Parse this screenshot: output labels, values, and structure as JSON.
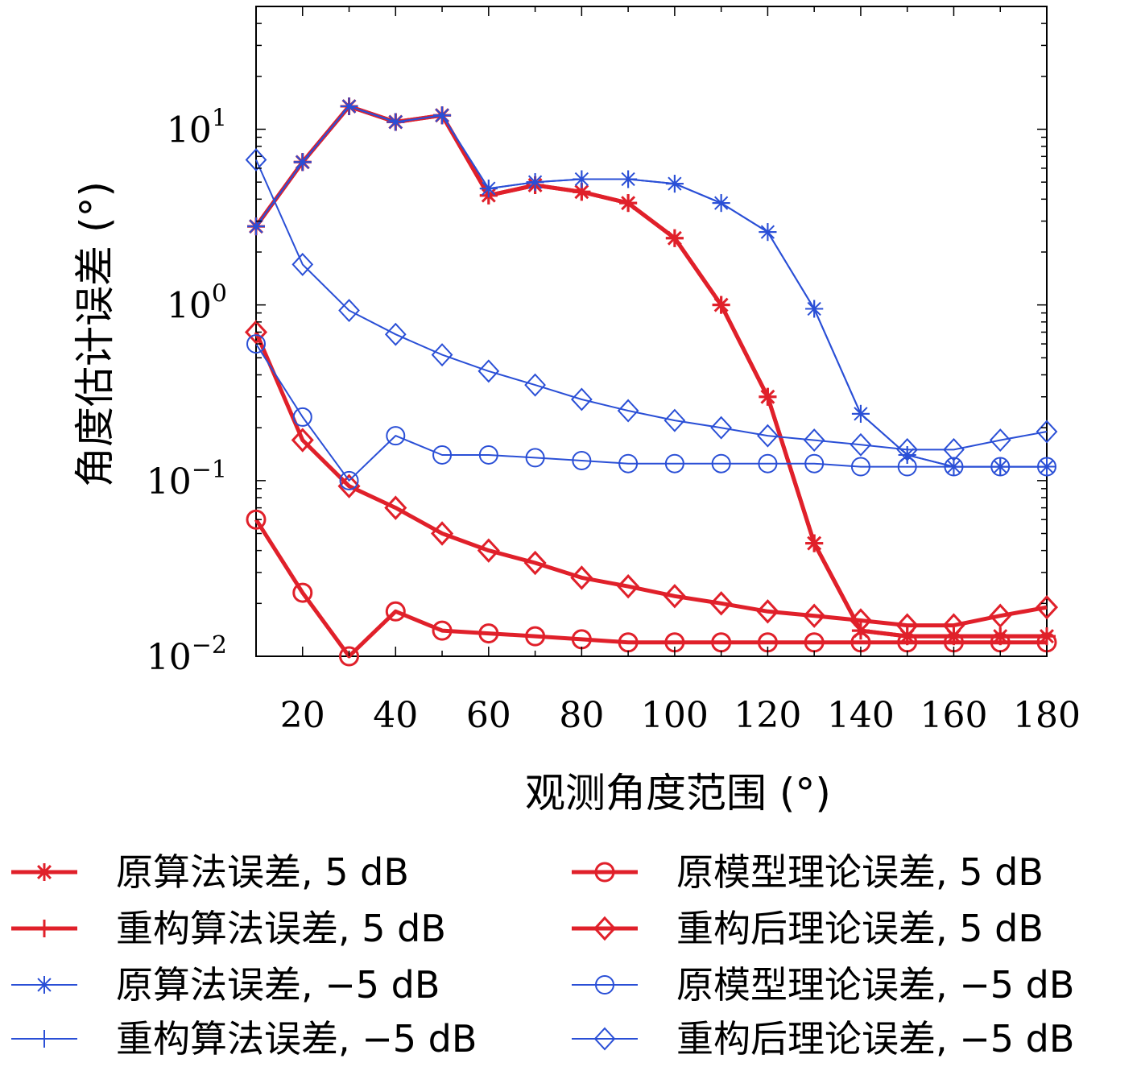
{
  "chart_data": {
    "type": "line",
    "xlabel": "观测角度范围 (°)",
    "ylabel": "角度估计误差 (°)",
    "x_ticks": [
      20,
      40,
      60,
      80,
      100,
      120,
      140,
      160,
      180
    ],
    "y_ticks": [
      {
        "value": 0.01,
        "base": "10",
        "exp": "−2"
      },
      {
        "value": 0.1,
        "base": "10",
        "exp": "−1"
      },
      {
        "value": 1,
        "base": "10",
        "exp": "0"
      },
      {
        "value": 10,
        "base": "10",
        "exp": "1"
      }
    ],
    "y_scale": "log",
    "xlim": [
      10,
      180
    ],
    "ylim": [
      0.01,
      50
    ],
    "grid": false,
    "legend_position": "bottom",
    "x": [
      10,
      20,
      30,
      40,
      50,
      60,
      70,
      80,
      90,
      100,
      110,
      120,
      130,
      140,
      150,
      160,
      170,
      180
    ],
    "series": [
      {
        "name": "原算法误差, 5 dB",
        "color": "#e0202a",
        "marker": "asterisk",
        "width": 5,
        "values": [
          2.8,
          6.5,
          13.5,
          11,
          12,
          4.2,
          4.8,
          4.4,
          3.8,
          2.4,
          1.0,
          0.3,
          0.044,
          0.014,
          0.013,
          0.013,
          0.013,
          0.013
        ]
      },
      {
        "name": "重构算法误差, 5 dB",
        "color": "#e0202a",
        "marker": "plus",
        "width": 5,
        "values": [
          2.8,
          6.5,
          13.5,
          11,
          12,
          4.2,
          4.8,
          4.4,
          3.8,
          2.4,
          1.0,
          0.3,
          0.044,
          0.014,
          0.013,
          0.013,
          0.013,
          0.013
        ]
      },
      {
        "name": "原算法误差, −5 dB",
        "color": "#2a4fd6",
        "marker": "asterisk",
        "width": 2,
        "values": [
          2.8,
          6.5,
          13.5,
          11,
          12,
          4.6,
          5.0,
          5.2,
          5.2,
          4.9,
          3.8,
          2.6,
          0.95,
          0.24,
          0.14,
          0.12,
          0.12,
          0.12
        ]
      },
      {
        "name": "重构算法误差, −5 dB",
        "color": "#2a4fd6",
        "marker": "plus",
        "width": 2,
        "values": [
          2.8,
          6.5,
          13.5,
          11,
          12,
          4.6,
          5.0,
          5.2,
          5.2,
          4.9,
          3.8,
          2.6,
          0.95,
          0.24,
          0.14,
          0.12,
          0.12,
          0.12
        ]
      },
      {
        "name": "原模型理论误差, 5 dB",
        "color": "#e0202a",
        "marker": "circle",
        "width": 5,
        "values": [
          0.06,
          0.023,
          0.01,
          0.018,
          0.014,
          0.0135,
          0.013,
          0.0125,
          0.012,
          0.012,
          0.012,
          0.012,
          0.012,
          0.012,
          0.012,
          0.012,
          0.012,
          0.012
        ]
      },
      {
        "name": "重构后理论误差, 5 dB",
        "color": "#e0202a",
        "marker": "diamond",
        "width": 5,
        "values": [
          0.7,
          0.17,
          0.093,
          0.07,
          0.05,
          0.04,
          0.034,
          0.028,
          0.025,
          0.022,
          0.02,
          0.018,
          0.017,
          0.016,
          0.015,
          0.015,
          0.017,
          0.019
        ]
      },
      {
        "name": "原模型理论误差, −5 dB",
        "color": "#2a4fd6",
        "marker": "circle",
        "width": 2,
        "values": [
          0.6,
          0.23,
          0.1,
          0.18,
          0.14,
          0.14,
          0.135,
          0.13,
          0.125,
          0.125,
          0.125,
          0.125,
          0.125,
          0.12,
          0.12,
          0.12,
          0.12,
          0.12
        ]
      },
      {
        "name": "重构后理论误差, −5 dB",
        "color": "#2a4fd6",
        "marker": "diamond",
        "width": 2,
        "values": [
          6.7,
          1.7,
          0.93,
          0.68,
          0.52,
          0.42,
          0.35,
          0.29,
          0.25,
          0.22,
          0.2,
          0.18,
          0.17,
          0.16,
          0.15,
          0.15,
          0.17,
          0.19
        ]
      }
    ]
  }
}
